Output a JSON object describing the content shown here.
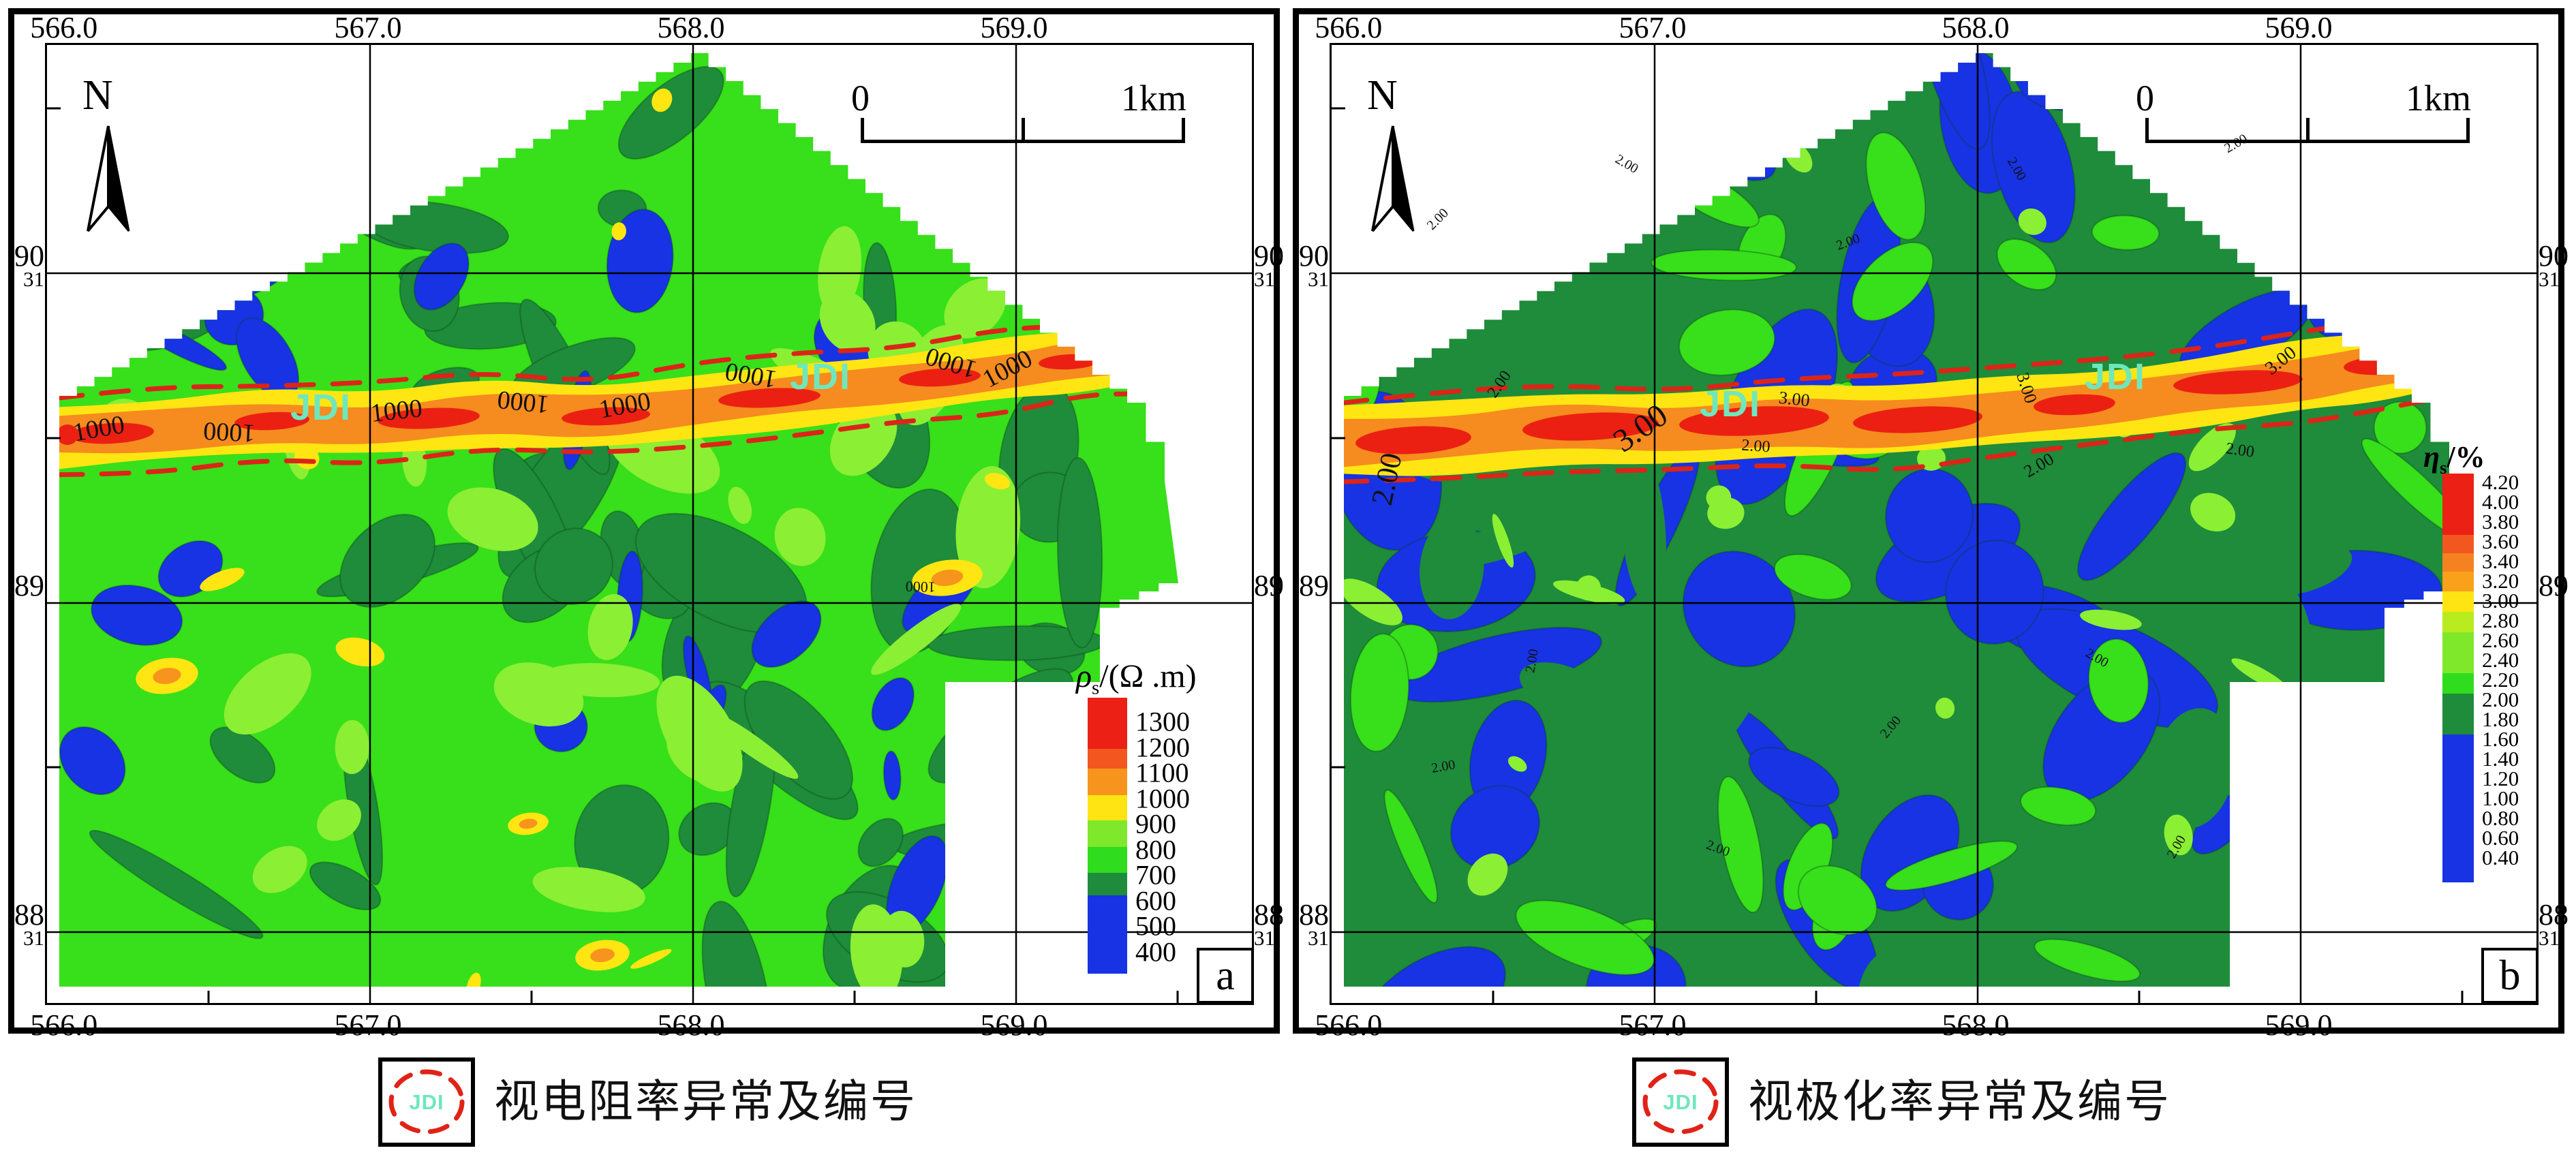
{
  "figure": {
    "bg": "#ffffff",
    "captions": [
      {
        "symbol_label": "JDI",
        "symbol_color": "#6FE7BD",
        "dash_color": "#E02318",
        "text": "视电阻率异常及编号"
      },
      {
        "symbol_label": "JDI",
        "symbol_color": "#6FE7BD",
        "dash_color": "#E02318",
        "text": "视极化率异常及编号"
      }
    ]
  },
  "chart_data": [
    {
      "type": "heatmap",
      "panel_letter": "a",
      "x_ticks": [
        "566.0",
        "567.0",
        "568.0",
        "569.0"
      ],
      "y_ticks": [
        {
          "main": "90",
          "sub": "31"
        },
        {
          "main": "89",
          "sub": ""
        },
        {
          "main": "88",
          "sub": "31"
        }
      ],
      "north_label": "N",
      "scale_bar": {
        "start": "0",
        "end": "1km"
      },
      "legend_title": {
        "symbol": "ρ",
        "subscript": "s",
        "unit": "/(Ω .m)"
      },
      "legend_labels": [
        "1300",
        "1200",
        "1100",
        "1000",
        "900",
        "800",
        "700",
        "600",
        "500",
        "400"
      ],
      "legend_segments": [
        {
          "color": "#EC2014",
          "frac": 0.185
        },
        {
          "color": "#F2571F",
          "frac": 0.072
        },
        {
          "color": "#F7941D",
          "frac": 0.095
        },
        {
          "color": "#FFE414",
          "frac": 0.092
        },
        {
          "color": "#7FE82A",
          "frac": 0.098
        },
        {
          "color": "#2FDD1E",
          "frac": 0.092
        },
        {
          "color": "#1E8C3A",
          "frac": 0.083
        },
        {
          "color": "#1733E3",
          "frac": 0.283
        }
      ],
      "anomaly_name": "JDI",
      "anomaly_outline_color": "#DD2418",
      "map_colors": {
        "base": "#38DF1B",
        "dark": "#1E8C3A",
        "blue": "#1733E3",
        "light": "#8BEF33",
        "yellow": "#FFE612",
        "orange": "#F7941D",
        "band_yellow": "#FFE612",
        "band_orange": "#F68B1F",
        "band_red": "#EB2012"
      },
      "jdi_positions": [
        {
          "x": 402,
          "y": 550
        },
        {
          "x": 1135,
          "y": 505
        }
      ],
      "contour_labels": [
        {
          "t": "1000",
          "x": 78,
          "y": 575,
          "r": -10,
          "s": 38
        },
        {
          "t": "1000",
          "x": 268,
          "y": 556,
          "r": 183,
          "s": 38
        },
        {
          "t": "1000",
          "x": 514,
          "y": 549,
          "r": -6,
          "s": 38
        },
        {
          "t": "1000",
          "x": 700,
          "y": 512,
          "r": 186,
          "s": 38
        },
        {
          "t": "1000",
          "x": 850,
          "y": 541,
          "r": -10,
          "s": 38
        },
        {
          "t": "1000",
          "x": 1035,
          "y": 473,
          "r": 190,
          "s": 38
        },
        {
          "t": "1000",
          "x": 1330,
          "y": 455,
          "r": 197,
          "s": 38
        },
        {
          "t": "1000",
          "x": 1415,
          "y": 486,
          "r": -28,
          "s": 38
        },
        {
          "t": "1000",
          "x": 1282,
          "y": 788,
          "r": 182,
          "s": 22
        }
      ],
      "band_centerline": [
        [
          12,
          575
        ],
        [
          150,
          568
        ],
        [
          320,
          552
        ],
        [
          480,
          556
        ],
        [
          640,
          540
        ],
        [
          800,
          548
        ],
        [
          950,
          528
        ],
        [
          1100,
          515
        ],
        [
          1250,
          498
        ],
        [
          1400,
          478
        ],
        [
          1520,
          462
        ],
        [
          1612,
          450
        ]
      ],
      "caption": "视电阻率异常及编号"
    },
    {
      "type": "heatmap",
      "panel_letter": "b",
      "x_ticks": [
        "566.0",
        "567.0",
        "568.0",
        "569.0"
      ],
      "y_ticks": [
        {
          "main": "90",
          "sub": "31"
        },
        {
          "main": "89",
          "sub": ""
        },
        {
          "main": "88",
          "sub": "31"
        }
      ],
      "north_label": "N",
      "scale_bar": {
        "start": "0",
        "end": "1km"
      },
      "legend_title": {
        "symbol": "η",
        "subscript": "s",
        "unit": "/%"
      },
      "legend_labels": [
        "4.20",
        "4.00",
        "3.80",
        "3.60",
        "3.40",
        "3.20",
        "3.00",
        "2.80",
        "2.60",
        "2.40",
        "2.20",
        "2.00",
        "1.80",
        "1.60",
        "1.40",
        "1.20",
        "1.00",
        "0.80",
        "0.60",
        "0.40"
      ],
      "legend_segments": [
        {
          "color": "#EC2014",
          "frac": 0.15
        },
        {
          "color": "#F2571F",
          "frac": 0.045
        },
        {
          "color": "#F58220",
          "frac": 0.045
        },
        {
          "color": "#F9A11B",
          "frac": 0.048
        },
        {
          "color": "#FFE414",
          "frac": 0.05
        },
        {
          "color": "#B9EC1E",
          "frac": 0.05
        },
        {
          "color": "#7FE82A",
          "frac": 0.1
        },
        {
          "color": "#2FDD1E",
          "frac": 0.05
        },
        {
          "color": "#1E8C3A",
          "frac": 0.1
        },
        {
          "color": "#1733E3",
          "frac": 0.362
        }
      ],
      "anomaly_name": "JDI",
      "anomaly_outline_color": "#DD2418",
      "map_colors": {
        "base": "#1E8C3A",
        "dark": "#166B2C",
        "blue": "#1733E3",
        "light": "#8BEF33",
        "green": "#38DF1B",
        "band_yellow": "#FFE612",
        "band_orange": "#F68B1F",
        "band_red": "#EB2012"
      },
      "jdi_positions": [
        {
          "x": 585,
          "y": 545
        },
        {
          "x": 1150,
          "y": 505
        }
      ],
      "contour_labels": [
        {
          "t": "3.00",
          "x": 462,
          "y": 575,
          "r": -35,
          "s": 48
        },
        {
          "t": "2.00",
          "x": 95,
          "y": 640,
          "r": -78,
          "s": 44
        },
        {
          "t": "2.00",
          "x": 252,
          "y": 502,
          "r": -55,
          "s": 24
        },
        {
          "t": "3.00",
          "x": 678,
          "y": 528,
          "r": 6,
          "s": 26
        },
        {
          "t": "2.00",
          "x": 622,
          "y": 596,
          "r": 4,
          "s": 24
        },
        {
          "t": "3.00",
          "x": 1012,
          "y": 506,
          "r": 72,
          "s": 26
        },
        {
          "t": "2.00",
          "x": 1042,
          "y": 624,
          "r": -30,
          "s": 26
        },
        {
          "t": "3.00",
          "x": 1398,
          "y": 470,
          "r": -38,
          "s": 28
        },
        {
          "t": "2.00",
          "x": 1332,
          "y": 602,
          "r": 8,
          "s": 24
        },
        {
          "t": "2.00",
          "x": 160,
          "y": 260,
          "r": -45,
          "s": 20
        },
        {
          "t": "2.00",
          "x": 430,
          "y": 180,
          "r": 30,
          "s": 20
        },
        {
          "t": "2.00",
          "x": 760,
          "y": 295,
          "r": -20,
          "s": 20
        },
        {
          "t": "2.00",
          "x": 1000,
          "y": 185,
          "r": 60,
          "s": 20
        },
        {
          "t": "2.00",
          "x": 300,
          "y": 905,
          "r": -80,
          "s": 20
        },
        {
          "t": "2.00",
          "x": 165,
          "y": 1065,
          "r": -10,
          "s": 20
        },
        {
          "t": "2.00",
          "x": 565,
          "y": 1185,
          "r": 20,
          "s": 20
        },
        {
          "t": "2.00",
          "x": 825,
          "y": 1005,
          "r": -50,
          "s": 20
        },
        {
          "t": "2.00",
          "x": 1120,
          "y": 905,
          "r": 30,
          "s": 20
        },
        {
          "t": "2.00",
          "x": 1245,
          "y": 1180,
          "r": -60,
          "s": 20
        },
        {
          "t": "2.00",
          "x": 1330,
          "y": 150,
          "r": -30,
          "s": 20
        }
      ],
      "band_centerline": [
        [
          12,
          585
        ],
        [
          160,
          578
        ],
        [
          330,
          560
        ],
        [
          500,
          566
        ],
        [
          660,
          550
        ],
        [
          820,
          556
        ],
        [
          980,
          535
        ],
        [
          1130,
          525
        ],
        [
          1280,
          505
        ],
        [
          1420,
          488
        ],
        [
          1540,
          470
        ],
        [
          1618,
          458
        ]
      ],
      "caption": "视极化率异常及编号"
    }
  ]
}
